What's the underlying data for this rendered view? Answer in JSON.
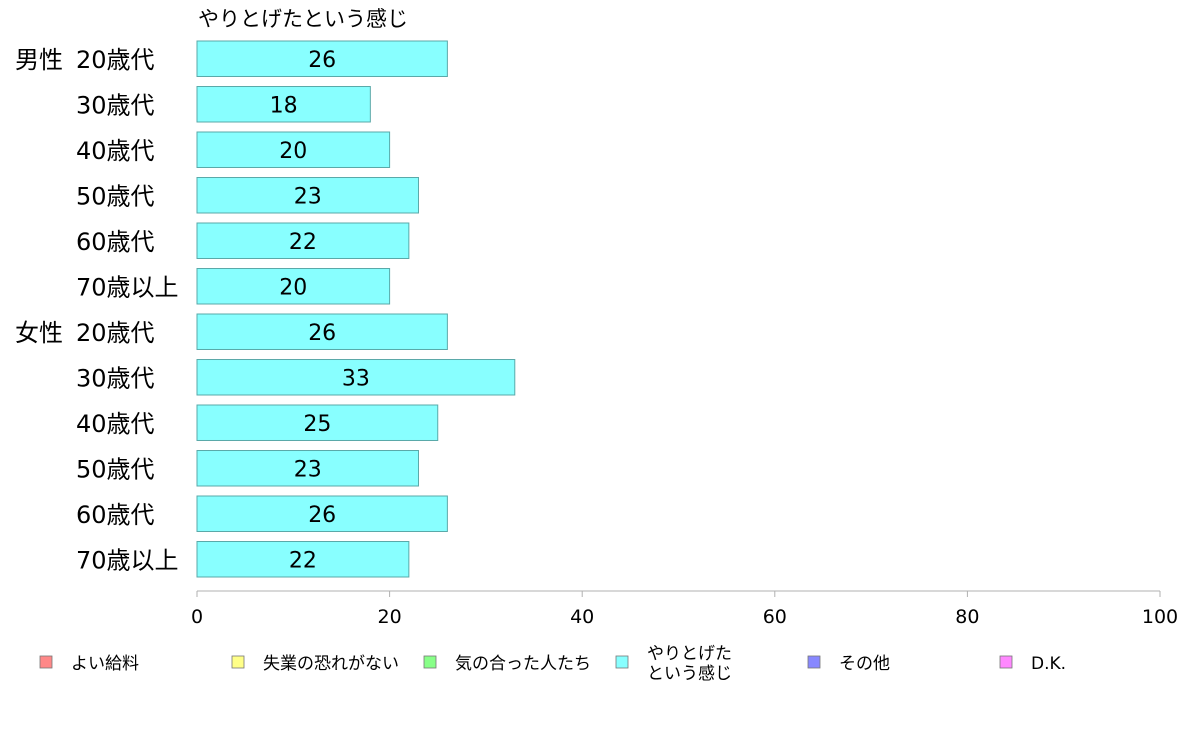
{
  "chart_data": {
    "type": "bar",
    "orientation": "horizontal",
    "title": "やりとげたという感じ",
    "groups": [
      "男性",
      "女性"
    ],
    "categories": [
      "20歳代",
      "30歳代",
      "40歳代",
      "50歳代",
      "60歳代",
      "70歳以上",
      "20歳代",
      "30歳代",
      "40歳代",
      "50歳代",
      "60歳代",
      "70歳以上"
    ],
    "category_group": [
      0,
      0,
      0,
      0,
      0,
      0,
      1,
      1,
      1,
      1,
      1,
      1
    ],
    "series": [
      {
        "name": "やりとげたという感じ",
        "color": "#88ffff",
        "values": [
          26,
          18,
          20,
          23,
          22,
          20,
          26,
          33,
          25,
          23,
          26,
          22
        ]
      }
    ],
    "xlim": [
      0,
      100
    ],
    "xticks": [
      0,
      20,
      40,
      60,
      80,
      100
    ],
    "grid": false,
    "legend": {
      "placement": "bottom",
      "items": [
        {
          "lines": [
            "よい給料"
          ],
          "color": "#ff8888"
        },
        {
          "lines": [
            "失業の恐れがない"
          ],
          "color": "#ffff88"
        },
        {
          "lines": [
            "気の合った人たち"
          ],
          "color": "#88ff88"
        },
        {
          "lines": [
            "やりとげた",
            "という感じ"
          ],
          "color": "#88ffff"
        },
        {
          "lines": [
            "その他"
          ],
          "color": "#8888ff"
        },
        {
          "lines": [
            "D.K."
          ],
          "color": "#ff88ff"
        }
      ]
    }
  }
}
